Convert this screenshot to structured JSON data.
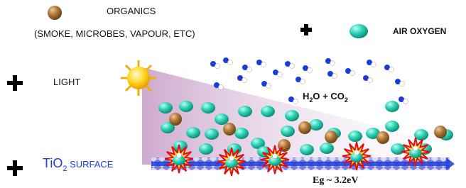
{
  "organics": {
    "label": "ORGANICS",
    "examples": "(SMOKE, MICROBES, VAPOUR, ETC)"
  },
  "air_oxygen": "AIR OXYGEN",
  "light": "LIGHT",
  "products": [
    "H",
    "2",
    "O + CO",
    "2"
  ],
  "surface": [
    "TiO",
    "2",
    " SURFACE"
  ],
  "band_gap": "Eg ~ 3.2eV"
}
